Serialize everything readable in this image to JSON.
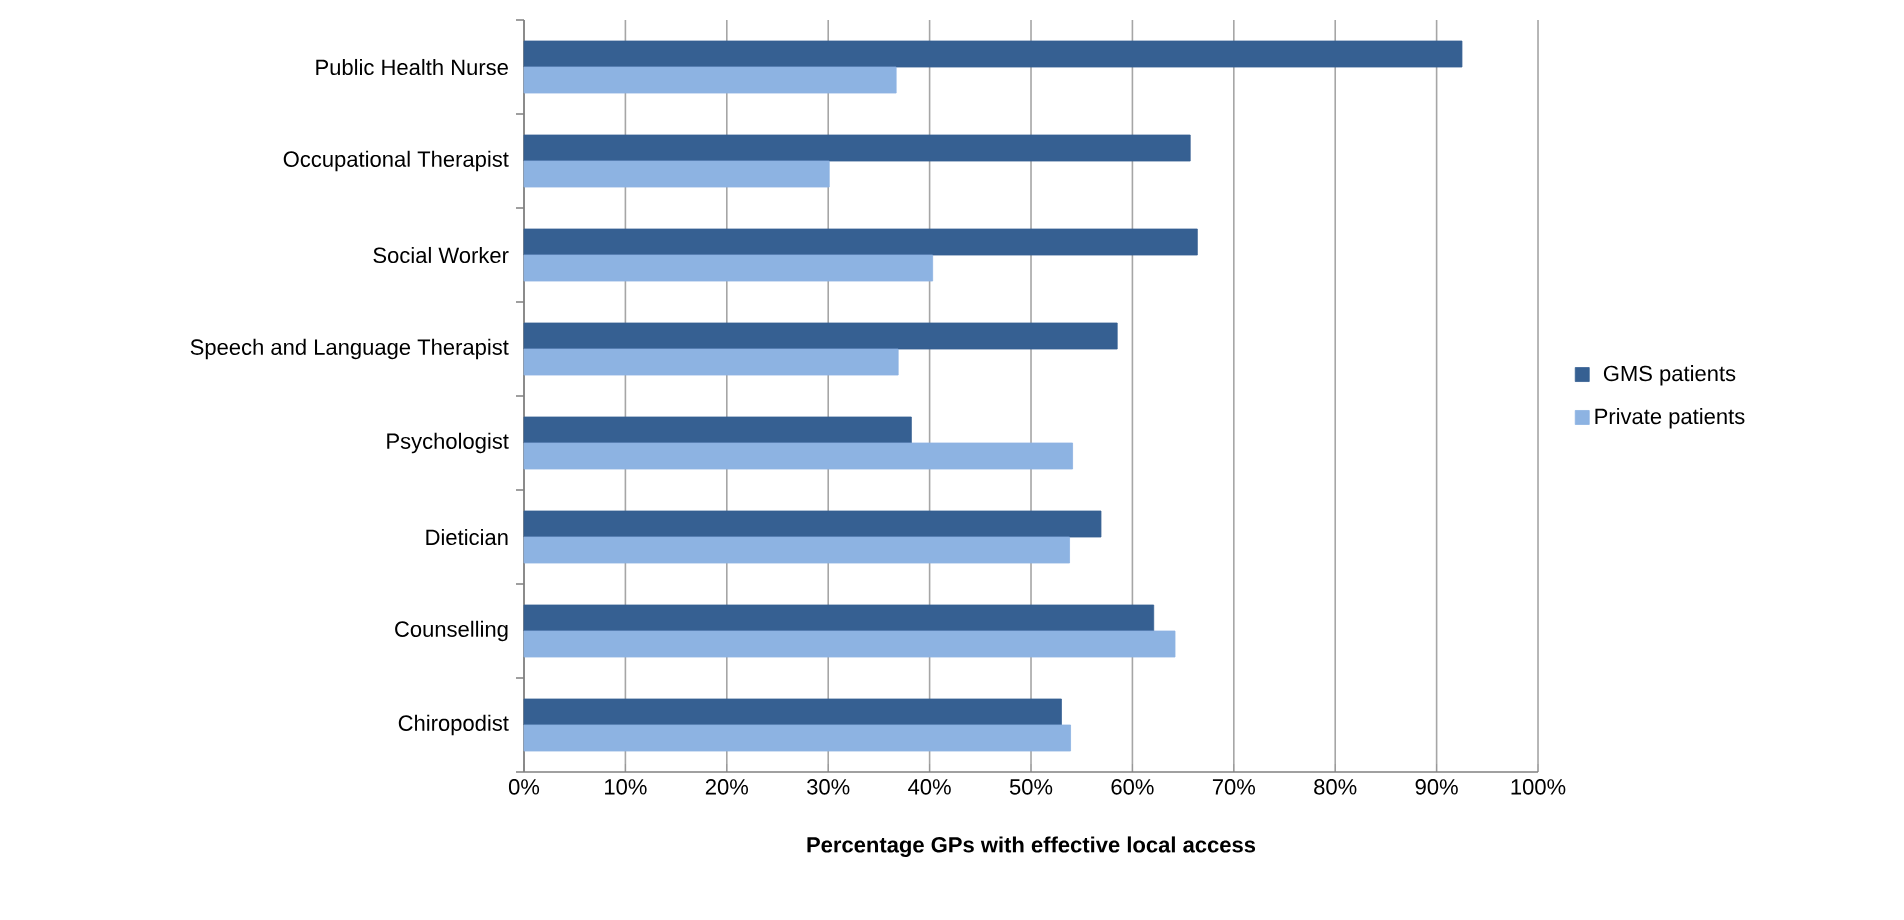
{
  "chart_data": {
    "type": "bar",
    "orientation": "horizontal",
    "xlabel": "Percentage GPs with effective local access",
    "categories": [
      "Public Health Nurse",
      "Occupational Therapist",
      "Social Worker",
      "Speech and Language Therapist",
      "Psychologist",
      "Dietician",
      "Counselling",
      "Chiropodist"
    ],
    "series": [
      {
        "name": "GMS patients",
        "color": "#366092",
        "values": [
          92.5,
          65.7,
          66.4,
          58.5,
          38.2,
          56.9,
          62.1,
          53.0
        ]
      },
      {
        "name": "Private patients",
        "color": "#8db3e2",
        "values": [
          36.7,
          30.1,
          40.3,
          36.9,
          54.1,
          53.8,
          64.2,
          53.9
        ]
      }
    ],
    "xlim": [
      0,
      100
    ],
    "xticks": [
      {
        "value": 0,
        "label": "0%"
      },
      {
        "value": 10,
        "label": "10%"
      },
      {
        "value": 20,
        "label": "20%"
      },
      {
        "value": 30,
        "label": "30%"
      },
      {
        "value": 40,
        "label": "40%"
      },
      {
        "value": 50,
        "label": "50%"
      },
      {
        "value": 60,
        "label": "60%"
      },
      {
        "value": 70,
        "label": "70%"
      },
      {
        "value": 80,
        "label": "80%"
      },
      {
        "value": 90,
        "label": "90%"
      },
      {
        "value": 100,
        "label": "100%"
      }
    ],
    "grid": "x",
    "legend": "right"
  }
}
